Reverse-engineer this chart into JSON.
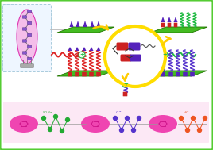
{
  "bg_color": "#ffffff",
  "border_color": "#55cc33",
  "platform_color": "#44bb22",
  "platform_edge": "#227700",
  "circle_color": "#ffdd00",
  "pink_oval": "#ee33aa",
  "pink_light": "#f5b8e8",
  "pink_border": "#dd22aa",
  "box_edge": "#aaccdd",
  "box_fill": "#eef6ff",
  "red_block": "#cc2222",
  "purple_block": "#5522bb",
  "green_chain": "#22bb44",
  "red_chain": "#dd2222",
  "orange_mol": "#ee6600",
  "purple_mol": "#5533cc",
  "arrow_yellow": "#ffcc00",
  "label_green": "#22aa33",
  "label_purple": "#5533cc",
  "label_orange": "#ee5522",
  "gray_line": "#888888"
}
